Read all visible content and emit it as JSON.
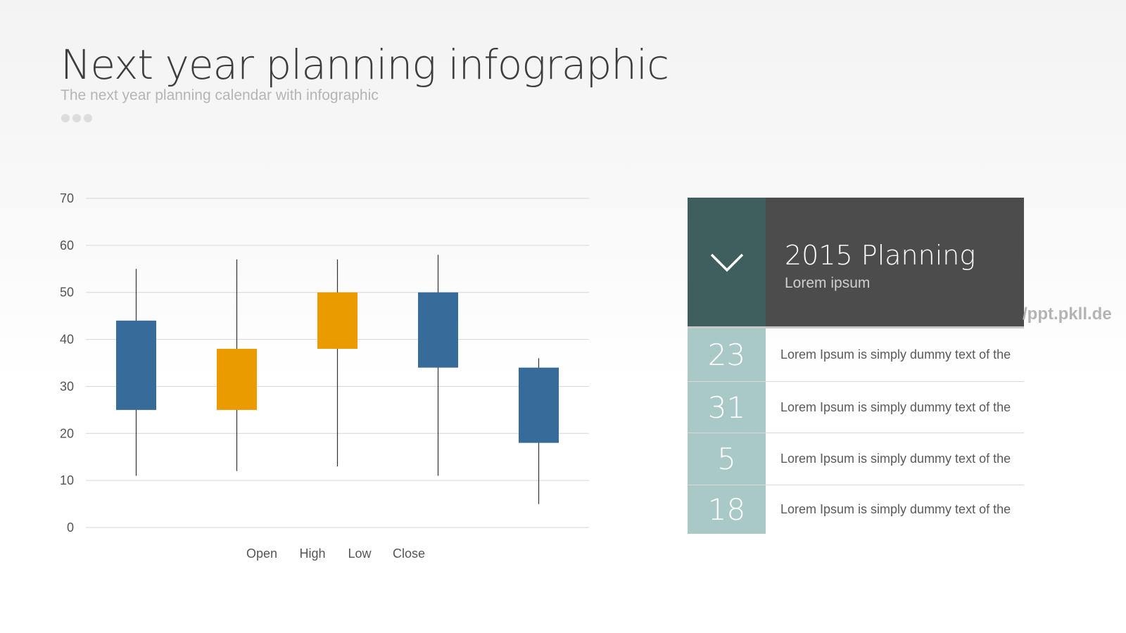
{
  "header": {
    "title": "Next year planning infographic",
    "subtitle": "The next year planning calendar with infographic"
  },
  "chart_data": {
    "type": "candlestick",
    "ylim": [
      0,
      70
    ],
    "yticks": [
      0,
      10,
      20,
      30,
      40,
      50,
      60,
      70
    ],
    "grid": true,
    "legend": [
      "Open",
      "High",
      "Low",
      "Close"
    ],
    "legend_position": "bottom",
    "colors": {
      "up": "#e99b00",
      "down": "#366b9a",
      "wick": "#333333"
    },
    "candles": [
      {
        "open": 44,
        "high": 55,
        "low": 11,
        "close": 25
      },
      {
        "open": 25,
        "high": 57,
        "low": 12,
        "close": 38
      },
      {
        "open": 38,
        "high": 57,
        "low": 13,
        "close": 50
      },
      {
        "open": 50,
        "high": 58,
        "low": 11,
        "close": 34
      },
      {
        "open": 34,
        "high": 36,
        "low": 5,
        "close": 18
      }
    ]
  },
  "panel": {
    "title": "2015 Planning",
    "subtitle": "Lorem ipsum",
    "icon": "chevron-down-icon",
    "rows": [
      {
        "number": "23",
        "text": "Lorem Ipsum is simply dummy text of the"
      },
      {
        "number": "31",
        "text": "Lorem Ipsum is simply dummy text of the"
      },
      {
        "number": "5",
        "text": "Lorem Ipsum is simply dummy text of the"
      },
      {
        "number": "18",
        "text": "Lorem Ipsum is simply dummy text of the"
      }
    ]
  },
  "watermark": "/ppt.pkll.de"
}
